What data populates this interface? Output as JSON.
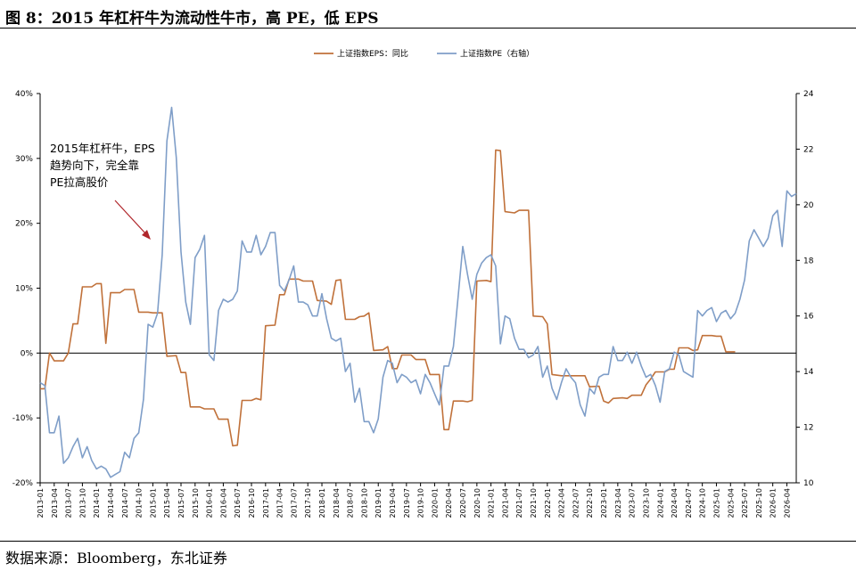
{
  "figure": {
    "title": "图 8：2015 年杠杆牛为流动性牛市，高 PE，低 EPS",
    "source": "数据来源：Bloomberg，东北证券"
  },
  "chart_data": {
    "type": "line",
    "legend_position": "top-center",
    "grid": false,
    "annotation": [
      "2015年杠杆牛，EPS",
      "趋势向下，完全靠",
      "PE拉高股价"
    ],
    "x_tick_labels": [
      "2013-01",
      "2013-04",
      "2013-07",
      "2013-10",
      "2014-01",
      "2014-04",
      "2014-07",
      "2014-10",
      "2015-01",
      "2015-04",
      "2015-07",
      "2015-10",
      "2016-01",
      "2016-04",
      "2016-07",
      "2016-10",
      "2017-01",
      "2017-04",
      "2017-07",
      "2017-10",
      "2018-01",
      "2018-04",
      "2018-07",
      "2018-10",
      "2019-01",
      "2019-04",
      "2019-07",
      "2019-10",
      "2020-01",
      "2020-04",
      "2020-07",
      "2020-10",
      "2021-01",
      "2021-04",
      "2021-07",
      "2021-10",
      "2022-01",
      "2022-04",
      "2022-07",
      "2022-10",
      "2023-01",
      "2023-04",
      "2023-07",
      "2023-10",
      "2024-01",
      "2024-04",
      "2024-07",
      "2024-10",
      "2025-01",
      "2025-04",
      "2025-07",
      "2025-10",
      "2026-01",
      "2026-04"
    ],
    "y_left": {
      "ticks": [
        "-20%",
        "-10%",
        "0%",
        "10%",
        "20%",
        "30%",
        "40%"
      ],
      "range": [
        -20,
        40
      ]
    },
    "y_right": {
      "ticks": [
        "10",
        "12",
        "14",
        "16",
        "18",
        "20",
        "22",
        "24"
      ],
      "range": [
        10,
        24
      ]
    },
    "series": [
      {
        "name": "上证指数EPS：同比",
        "color": "#c0713a",
        "axis": "left",
        "points": [
          [
            "2013-01",
            -5.5
          ],
          [
            "2013-02",
            -5.5
          ],
          [
            "2013-03",
            0
          ],
          [
            "2013-04",
            -1.2
          ],
          [
            "2013-06",
            -1.2
          ],
          [
            "2013-07",
            0
          ],
          [
            "2013-08",
            4.5
          ],
          [
            "2013-09",
            4.5
          ],
          [
            "2013-10",
            10.2
          ],
          [
            "2013-12",
            10.2
          ],
          [
            "2014-01",
            10.7
          ],
          [
            "2014-02",
            10.7
          ],
          [
            "2014-03",
            1.5
          ],
          [
            "2014-04",
            9.3
          ],
          [
            "2014-06",
            9.3
          ],
          [
            "2014-07",
            9.8
          ],
          [
            "2014-09",
            9.8
          ],
          [
            "2014-10",
            6.3
          ],
          [
            "2014-12",
            6.3
          ],
          [
            "2015-01",
            6.2
          ],
          [
            "2015-03",
            6.2
          ],
          [
            "2015-04",
            -0.5
          ],
          [
            "2015-06",
            -0.4
          ],
          [
            "2015-07",
            -3
          ],
          [
            "2015-08",
            -3
          ],
          [
            "2015-09",
            -8.3
          ],
          [
            "2015-11",
            -8.3
          ],
          [
            "2015-12",
            -8.6
          ],
          [
            "2016-02",
            -8.6
          ],
          [
            "2016-03",
            -10.2
          ],
          [
            "2016-05",
            -10.2
          ],
          [
            "2016-06",
            -14.3
          ],
          [
            "2016-07",
            -14.2
          ],
          [
            "2016-08",
            -7.3
          ],
          [
            "2016-10",
            -7.3
          ],
          [
            "2016-11",
            -7
          ],
          [
            "2016-12",
            -7.2
          ],
          [
            "2017-01",
            4.2
          ],
          [
            "2017-03",
            4.3
          ],
          [
            "2017-04",
            9
          ],
          [
            "2017-05",
            9
          ],
          [
            "2017-06",
            11.4
          ],
          [
            "2017-08",
            11.4
          ],
          [
            "2017-09",
            11.1
          ],
          [
            "2017-11",
            11.1
          ],
          [
            "2017-12",
            8.1
          ],
          [
            "2018-02",
            8
          ],
          [
            "2018-03",
            7.5
          ],
          [
            "2018-04",
            11.2
          ],
          [
            "2018-05",
            11.3
          ],
          [
            "2018-06",
            5.2
          ],
          [
            "2018-08",
            5.2
          ],
          [
            "2018-09",
            5.6
          ],
          [
            "2018-10",
            5.7
          ],
          [
            "2018-11",
            6.2
          ],
          [
            "2018-12",
            0.4
          ],
          [
            "2019-02",
            0.5
          ],
          [
            "2019-03",
            1
          ],
          [
            "2019-04",
            -2.4
          ],
          [
            "2019-05",
            -2.4
          ],
          [
            "2019-06",
            -0.3
          ],
          [
            "2019-08",
            -0.3
          ],
          [
            "2019-09",
            -1
          ],
          [
            "2019-11",
            -1
          ],
          [
            "2019-12",
            -3.3
          ],
          [
            "2020-02",
            -3.3
          ],
          [
            "2020-03",
            -11.8
          ],
          [
            "2020-04",
            -11.8
          ],
          [
            "2020-05",
            -7.4
          ],
          [
            "2020-07",
            -7.4
          ],
          [
            "2020-08",
            -7.5
          ],
          [
            "2020-09",
            -7.3
          ],
          [
            "2020-10",
            11.1
          ],
          [
            "2020-12",
            11.2
          ],
          [
            "2021-01",
            11
          ],
          [
            "2021-02",
            31.3
          ],
          [
            "2021-03",
            31.2
          ],
          [
            "2021-04",
            21.8
          ],
          [
            "2021-06",
            21.6
          ],
          [
            "2021-07",
            22
          ],
          [
            "2021-09",
            22
          ],
          [
            "2021-10",
            5.7
          ],
          [
            "2021-12",
            5.6
          ],
          [
            "2022-01",
            4.5
          ],
          [
            "2022-02",
            -3.3
          ],
          [
            "2022-04",
            -3.5
          ],
          [
            "2022-09",
            -3.5
          ],
          [
            "2022-10",
            -5.2
          ],
          [
            "2022-12",
            -5.1
          ],
          [
            "2023-01",
            -7.4
          ],
          [
            "2023-02",
            -7.7
          ],
          [
            "2023-03",
            -7
          ],
          [
            "2023-05",
            -6.9
          ],
          [
            "2023-06",
            -7
          ],
          [
            "2023-07",
            -6.5
          ],
          [
            "2023-09",
            -6.5
          ],
          [
            "2023-10",
            -4.9
          ],
          [
            "2023-11",
            -4
          ],
          [
            "2023-12",
            -2.9
          ],
          [
            "2024-02",
            -2.9
          ],
          [
            "2024-03",
            -2.5
          ],
          [
            "2024-04",
            -2.5
          ],
          [
            "2024-05",
            0.8
          ],
          [
            "2024-07",
            0.8
          ],
          [
            "2024-08",
            0.4
          ],
          [
            "2024-09",
            0.5
          ],
          [
            "2024-10",
            2.7
          ],
          [
            "2024-12",
            2.7
          ],
          [
            "2025-01",
            2.6
          ],
          [
            "2025-02",
            2.6
          ],
          [
            "2025-03",
            0.2
          ],
          [
            "2025-05",
            0.2
          ]
        ]
      },
      {
        "name": "上证指数PE（右轴）",
        "color": "#7f9ec8",
        "axis": "right",
        "points": [
          [
            "2013-01",
            13.6
          ],
          [
            "2013-02",
            13.5
          ],
          [
            "2013-03",
            11.8
          ],
          [
            "2013-04",
            11.8
          ],
          [
            "2013-05",
            12.4
          ],
          [
            "2013-06",
            10.7
          ],
          [
            "2013-07",
            10.9
          ],
          [
            "2013-08",
            11.3
          ],
          [
            "2013-09",
            11.6
          ],
          [
            "2013-10",
            10.9
          ],
          [
            "2013-11",
            11.3
          ],
          [
            "2013-12",
            10.8
          ],
          [
            "2014-01",
            10.5
          ],
          [
            "2014-02",
            10.6
          ],
          [
            "2014-03",
            10.5
          ],
          [
            "2014-04",
            10.2
          ],
          [
            "2014-05",
            10.3
          ],
          [
            "2014-06",
            10.4
          ],
          [
            "2014-07",
            11.1
          ],
          [
            "2014-08",
            10.9
          ],
          [
            "2014-09",
            11.6
          ],
          [
            "2014-10",
            11.8
          ],
          [
            "2014-11",
            13
          ],
          [
            "2014-12",
            15.7
          ],
          [
            "2015-01",
            15.6
          ],
          [
            "2015-02",
            16.1
          ],
          [
            "2015-03",
            18.2
          ],
          [
            "2015-04",
            22.3
          ],
          [
            "2015-05",
            23.5
          ],
          [
            "2015-06",
            21.7
          ],
          [
            "2015-07",
            18.3
          ],
          [
            "2015-08",
            16.5
          ],
          [
            "2015-09",
            15.7
          ],
          [
            "2015-10",
            18.1
          ],
          [
            "2015-11",
            18.4
          ],
          [
            "2015-12",
            18.9
          ],
          [
            "2016-01",
            14.6
          ],
          [
            "2016-02",
            14.4
          ],
          [
            "2016-03",
            16.2
          ],
          [
            "2016-04",
            16.6
          ],
          [
            "2016-05",
            16.5
          ],
          [
            "2016-06",
            16.6
          ],
          [
            "2016-07",
            16.9
          ],
          [
            "2016-08",
            18.7
          ],
          [
            "2016-09",
            18.3
          ],
          [
            "2016-10",
            18.3
          ],
          [
            "2016-11",
            18.9
          ],
          [
            "2016-12",
            18.2
          ],
          [
            "2017-01",
            18.5
          ],
          [
            "2017-02",
            19
          ],
          [
            "2017-03",
            19
          ],
          [
            "2017-04",
            17.1
          ],
          [
            "2017-05",
            16.9
          ],
          [
            "2017-06",
            17.3
          ],
          [
            "2017-07",
            17.8
          ],
          [
            "2017-08",
            16.5
          ],
          [
            "2017-09",
            16.5
          ],
          [
            "2017-10",
            16.4
          ],
          [
            "2017-11",
            16
          ],
          [
            "2017-12",
            16
          ],
          [
            "2018-01",
            16.8
          ],
          [
            "2018-02",
            15.9
          ],
          [
            "2018-03",
            15.2
          ],
          [
            "2018-04",
            15.1
          ],
          [
            "2018-05",
            15.2
          ],
          [
            "2018-06",
            14
          ],
          [
            "2018-07",
            14.3
          ],
          [
            "2018-08",
            12.9
          ],
          [
            "2018-09",
            13.4
          ],
          [
            "2018-10",
            12.2
          ],
          [
            "2018-11",
            12.2
          ],
          [
            "2018-12",
            11.8
          ],
          [
            "2019-01",
            12.3
          ],
          [
            "2019-02",
            13.8
          ],
          [
            "2019-03",
            14.4
          ],
          [
            "2019-04",
            14.3
          ],
          [
            "2019-05",
            13.6
          ],
          [
            "2019-06",
            13.9
          ],
          [
            "2019-07",
            13.8
          ],
          [
            "2019-08",
            13.6
          ],
          [
            "2019-09",
            13.7
          ],
          [
            "2019-10",
            13.2
          ],
          [
            "2019-11",
            13.9
          ],
          [
            "2019-12",
            13.6
          ],
          [
            "2020-01",
            13.2
          ],
          [
            "2020-02",
            12.8
          ],
          [
            "2020-03",
            14.2
          ],
          [
            "2020-04",
            14.2
          ],
          [
            "2020-05",
            14.9
          ],
          [
            "2020-06",
            16.7
          ],
          [
            "2020-07",
            18.5
          ],
          [
            "2020-08",
            17.5
          ],
          [
            "2020-09",
            16.6
          ],
          [
            "2020-10",
            17.5
          ],
          [
            "2020-11",
            17.9
          ],
          [
            "2020-12",
            18.1
          ],
          [
            "2021-01",
            18.2
          ],
          [
            "2021-02",
            17.8
          ],
          [
            "2021-03",
            15
          ],
          [
            "2021-04",
            16
          ],
          [
            "2021-05",
            15.9
          ],
          [
            "2021-06",
            15.2
          ],
          [
            "2021-07",
            14.8
          ],
          [
            "2021-08",
            14.8
          ],
          [
            "2021-09",
            14.5
          ],
          [
            "2021-10",
            14.6
          ],
          [
            "2021-11",
            14.9
          ],
          [
            "2021-12",
            13.8
          ],
          [
            "2022-01",
            14.2
          ],
          [
            "2022-02",
            13.4
          ],
          [
            "2022-03",
            13
          ],
          [
            "2022-04",
            13.6
          ],
          [
            "2022-05",
            14.1
          ],
          [
            "2022-06",
            13.8
          ],
          [
            "2022-07",
            13.6
          ],
          [
            "2022-08",
            12.8
          ],
          [
            "2022-09",
            12.4
          ],
          [
            "2022-10",
            13.4
          ],
          [
            "2022-11",
            13.2
          ],
          [
            "2022-12",
            13.8
          ],
          [
            "2023-01",
            13.9
          ],
          [
            "2023-02",
            13.9
          ],
          [
            "2023-03",
            14.9
          ],
          [
            "2023-04",
            14.4
          ],
          [
            "2023-05",
            14.4
          ],
          [
            "2023-06",
            14.7
          ],
          [
            "2023-07",
            14.3
          ],
          [
            "2023-08",
            14.7
          ],
          [
            "2023-09",
            14.2
          ],
          [
            "2023-10",
            13.8
          ],
          [
            "2023-11",
            13.9
          ],
          [
            "2023-12",
            13.5
          ],
          [
            "2024-01",
            12.9
          ],
          [
            "2024-02",
            14
          ],
          [
            "2024-03",
            14.1
          ],
          [
            "2024-04",
            14.7
          ],
          [
            "2024-05",
            14.6
          ],
          [
            "2024-06",
            14
          ],
          [
            "2024-07",
            13.9
          ],
          [
            "2024-08",
            13.8
          ],
          [
            "2024-09",
            16.2
          ],
          [
            "2024-10",
            16
          ],
          [
            "2024-11",
            16.2
          ],
          [
            "2024-12",
            16.3
          ],
          [
            "2025-01",
            15.8
          ],
          [
            "2025-02",
            16.1
          ],
          [
            "2025-03",
            16.2
          ],
          [
            "2025-04",
            15.9
          ],
          [
            "2025-05",
            16.1
          ],
          [
            "2025-06",
            16.6
          ],
          [
            "2025-07",
            17.3
          ],
          [
            "2025-08",
            18.7
          ],
          [
            "2025-09",
            19.1
          ],
          [
            "2025-10",
            18.8
          ],
          [
            "2025-11",
            18.5
          ],
          [
            "2025-12",
            18.8
          ],
          [
            "2026-01",
            19.6
          ],
          [
            "2026-02",
            19.8
          ],
          [
            "2026-03",
            18.5
          ],
          [
            "2026-04",
            20.5
          ],
          [
            "2026-05",
            20.3
          ],
          [
            "2026-06",
            20.4
          ]
        ]
      }
    ]
  }
}
